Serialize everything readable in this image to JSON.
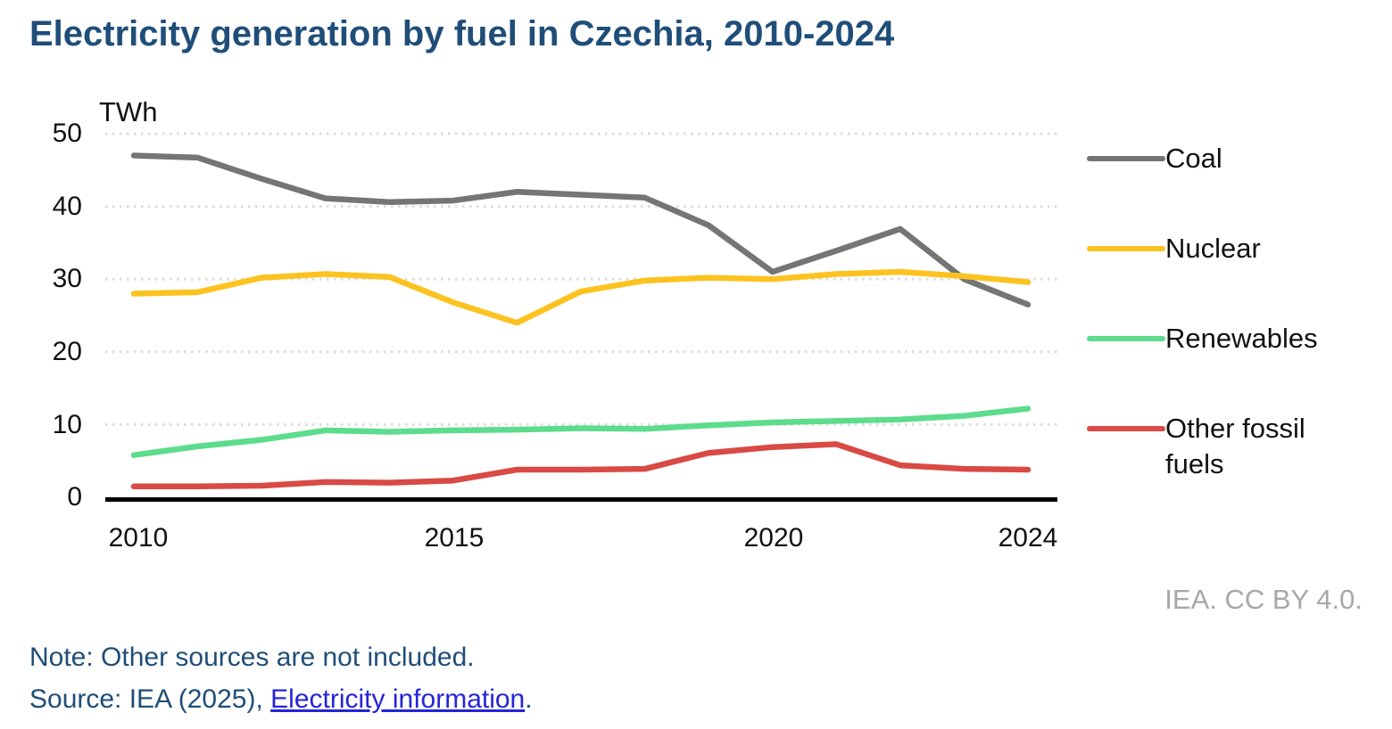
{
  "title": "Electricity generation by fuel in Czechia, 2010-2024",
  "chart_data": {
    "type": "line",
    "unit_label": "TWh",
    "x": [
      2010,
      2011,
      2012,
      2013,
      2014,
      2015,
      2016,
      2017,
      2018,
      2019,
      2020,
      2021,
      2022,
      2023,
      2024
    ],
    "series": [
      {
        "name": "Coal",
        "color": "#757575",
        "values": [
          47.0,
          46.7,
          43.8,
          41.1,
          40.6,
          40.8,
          42.0,
          41.6,
          41.2,
          37.4,
          31.0,
          33.9,
          36.9,
          30.0,
          26.5
        ]
      },
      {
        "name": "Nuclear",
        "color": "#FCC320",
        "values": [
          28.0,
          28.2,
          30.2,
          30.7,
          30.3,
          26.8,
          24.0,
          28.3,
          29.8,
          30.2,
          30.0,
          30.7,
          31.0,
          30.4,
          29.6
        ]
      },
      {
        "name": "Renewables",
        "color": "#5CDC8C",
        "values": [
          5.8,
          7.0,
          7.9,
          9.2,
          9.0,
          9.2,
          9.3,
          9.5,
          9.4,
          9.9,
          10.3,
          10.5,
          10.7,
          11.2,
          12.2
        ]
      },
      {
        "name": "Other fossil fuels",
        "color": "#D94A45",
        "values": [
          1.5,
          1.5,
          1.6,
          2.1,
          2.0,
          2.3,
          3.8,
          3.8,
          3.9,
          6.1,
          6.9,
          7.3,
          4.4,
          3.9,
          3.8
        ]
      }
    ],
    "ylim": [
      0,
      50
    ],
    "yticks": [
      0,
      10,
      20,
      30,
      40,
      50
    ],
    "ytick_labels": [
      "0",
      "10",
      "20",
      "30",
      "40",
      "50"
    ],
    "xticks": [
      2010,
      2015,
      2020,
      2024
    ],
    "xtick_labels": [
      "2010",
      "2015",
      "2020",
      "2024"
    ],
    "grid": "horizontal-dotted",
    "legend_position": "right",
    "gridline_color": "#DBDBDB",
    "axis_color": "#000000"
  },
  "attribution": "IEA. CC BY 4.0.",
  "note": "Note: Other sources are not included.",
  "source": {
    "prefix": "Source: IEA (2025), ",
    "link_text": "Electricity information",
    "suffix": "."
  },
  "colors": {
    "title": "#1F4E79",
    "link": "#2525D6",
    "attribution": "#A8A8A8"
  }
}
